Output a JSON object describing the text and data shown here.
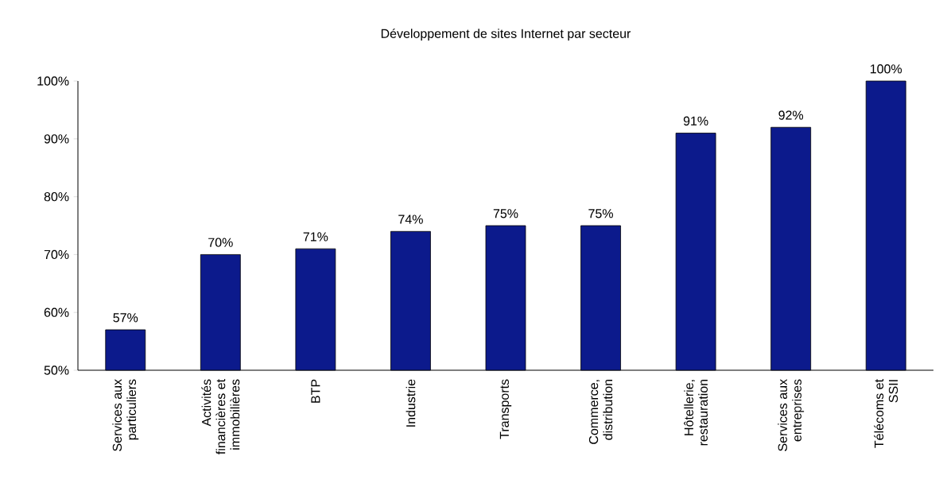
{
  "chart_data": {
    "type": "bar",
    "title": "Développement de sites Internet par secteur",
    "categories": [
      "Services aux particuliers",
      "Activités financières et immobilières",
      "BTP",
      "Industrie",
      "Transports",
      "Commerce, distribution",
      "Hôtellerie, restauration",
      "Services aux entreprises",
      "Télécoms et SSII"
    ],
    "values": [
      57,
      70,
      71,
      74,
      75,
      75,
      91,
      92,
      100
    ],
    "value_labels": [
      "57%",
      "70%",
      "71%",
      "74%",
      "75%",
      "75%",
      "91%",
      "92%",
      "100%"
    ],
    "color": "#0c1a8c",
    "ylim": [
      50,
      100
    ],
    "yticks": [
      {
        "value": 50,
        "label": "50%"
      },
      {
        "value": 60,
        "label": "60%"
      },
      {
        "value": 70,
        "label": "70%"
      },
      {
        "value": 80,
        "label": "80%"
      },
      {
        "value": 90,
        "label": "90%"
      },
      {
        "value": 100,
        "label": "100%"
      }
    ],
    "grid": false
  }
}
